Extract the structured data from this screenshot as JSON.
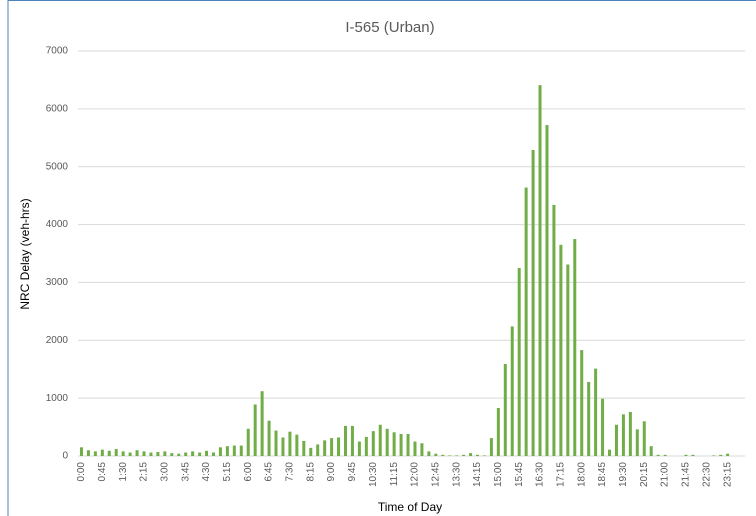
{
  "chart_data": {
    "type": "bar",
    "title": "I-565 (Urban)",
    "x_label": "Time of Day",
    "y_label": "NRC Delay (veh-hrs)",
    "categories": [
      "0:00",
      null,
      null,
      "0:45",
      null,
      null,
      "1:30",
      null,
      null,
      "2:15",
      null,
      null,
      "3:00",
      null,
      null,
      "3:45",
      null,
      null,
      "4:30",
      null,
      null,
      "5:15",
      null,
      null,
      "6:00",
      null,
      null,
      "6:45",
      null,
      null,
      "7:30",
      null,
      null,
      "8:15",
      null,
      null,
      "9:00",
      null,
      null,
      "9:45",
      null,
      null,
      "10:30",
      null,
      null,
      "11:15",
      null,
      null,
      "12:00",
      null,
      null,
      "12:45",
      null,
      null,
      "13:30",
      null,
      null,
      "14:15",
      null,
      null,
      "15:00",
      null,
      null,
      "15:45",
      null,
      null,
      "16:30",
      null,
      null,
      "17:15",
      null,
      null,
      "18:00",
      null,
      null,
      "18:45",
      null,
      null,
      "19:30",
      null,
      null,
      "20:15",
      null,
      null,
      "21:00",
      null,
      null,
      "21:45",
      null,
      null,
      "22:30",
      null,
      null,
      "23:15",
      null,
      null
    ],
    "values": [
      150,
      100,
      80,
      110,
      90,
      120,
      80,
      60,
      100,
      80,
      60,
      70,
      80,
      50,
      40,
      60,
      80,
      60,
      90,
      60,
      150,
      170,
      180,
      180,
      470,
      890,
      1120,
      610,
      440,
      320,
      420,
      370,
      260,
      140,
      200,
      270,
      310,
      320,
      520,
      520,
      250,
      330,
      430,
      540,
      470,
      410,
      380,
      380,
      250,
      220,
      80,
      40,
      20,
      10,
      10,
      20,
      50,
      20,
      10,
      310,
      830,
      1590,
      2240,
      3250,
      4640,
      5290,
      6410,
      5720,
      4340,
      3650,
      3310,
      3750,
      1830,
      1280,
      1510,
      990,
      110,
      540,
      720,
      760,
      460,
      600,
      170,
      20,
      20,
      0,
      0,
      20,
      20,
      0,
      0,
      10,
      20,
      40,
      0,
      0
    ],
    "color": "#70ad47",
    "ylim": [
      0,
      7000
    ],
    "yticks": [
      0,
      1000,
      2000,
      3000,
      4000,
      5000,
      6000,
      7000
    ],
    "grid": true
  }
}
